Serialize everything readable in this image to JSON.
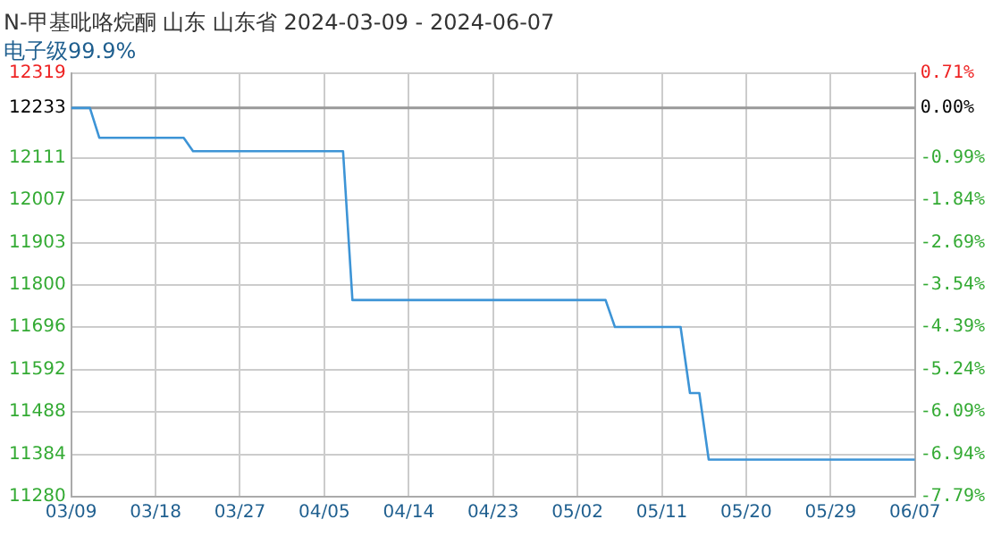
{
  "chart_data": {
    "type": "line",
    "title": "N-甲基吡咯烷酮 山东 山东省 2024-03-09 - 2024-06-07",
    "subtitle": "电子级99.9%",
    "x": [
      "2024-03-09",
      "2024-03-11",
      "2024-03-12",
      "2024-03-21",
      "2024-03-22",
      "2024-04-07",
      "2024-04-08",
      "2024-05-05",
      "2024-05-06",
      "2024-05-13",
      "2024-05-14",
      "2024-05-15",
      "2024-05-16",
      "2024-06-07"
    ],
    "series": [
      {
        "color": "#3d94d6",
        "values": [
          12233,
          12233,
          12160,
          12160,
          12127,
          12127,
          11762,
          11762,
          11696,
          11696,
          11534,
          11534,
          11371,
          11371
        ]
      }
    ],
    "xlim": [
      "2024-03-09",
      "2024-06-07"
    ],
    "xticks": [
      {
        "value": "2024-03-09",
        "label": "03/09"
      },
      {
        "value": "2024-03-18",
        "label": "03/18"
      },
      {
        "value": "2024-03-27",
        "label": "03/27"
      },
      {
        "value": "2024-04-05",
        "label": "04/05"
      },
      {
        "value": "2024-04-14",
        "label": "04/14"
      },
      {
        "value": "2024-04-23",
        "label": "04/23"
      },
      {
        "value": "2024-05-02",
        "label": "05/02"
      },
      {
        "value": "2024-05-11",
        "label": "05/11"
      },
      {
        "value": "2024-05-20",
        "label": "05/20"
      },
      {
        "value": "2024-05-29",
        "label": "05/29"
      },
      {
        "value": "2024-06-07",
        "label": "06/07"
      }
    ],
    "ylim": [
      11280,
      12319
    ],
    "yticks": [
      11280,
      11384,
      11488,
      11592,
      11696,
      11800,
      11903,
      12007,
      12111,
      12233,
      12319
    ],
    "y2lim": [
      -7.79,
      0.71
    ],
    "y2ticks": [
      {
        "value": -7.79,
        "label": "-7.79%"
      },
      {
        "value": -6.94,
        "label": "-6.94%"
      },
      {
        "value": -6.09,
        "label": "-6.09%"
      },
      {
        "value": -5.24,
        "label": "-5.24%"
      },
      {
        "value": -4.39,
        "label": "-4.39%"
      },
      {
        "value": -3.54,
        "label": "-3.54%"
      },
      {
        "value": -2.69,
        "label": "-2.69%"
      },
      {
        "value": -1.84,
        "label": "-1.84%"
      },
      {
        "value": -0.99,
        "label": "-0.99%"
      },
      {
        "value": 0,
        "label": "0.00%"
      },
      {
        "value": 0.71,
        "label": "0.71%"
      }
    ],
    "ref_lines": [
      {
        "axis": "y",
        "value": 12233,
        "color": "#999999"
      }
    ],
    "grid": true,
    "legend": false,
    "marker": "none",
    "line_style": "solid"
  }
}
